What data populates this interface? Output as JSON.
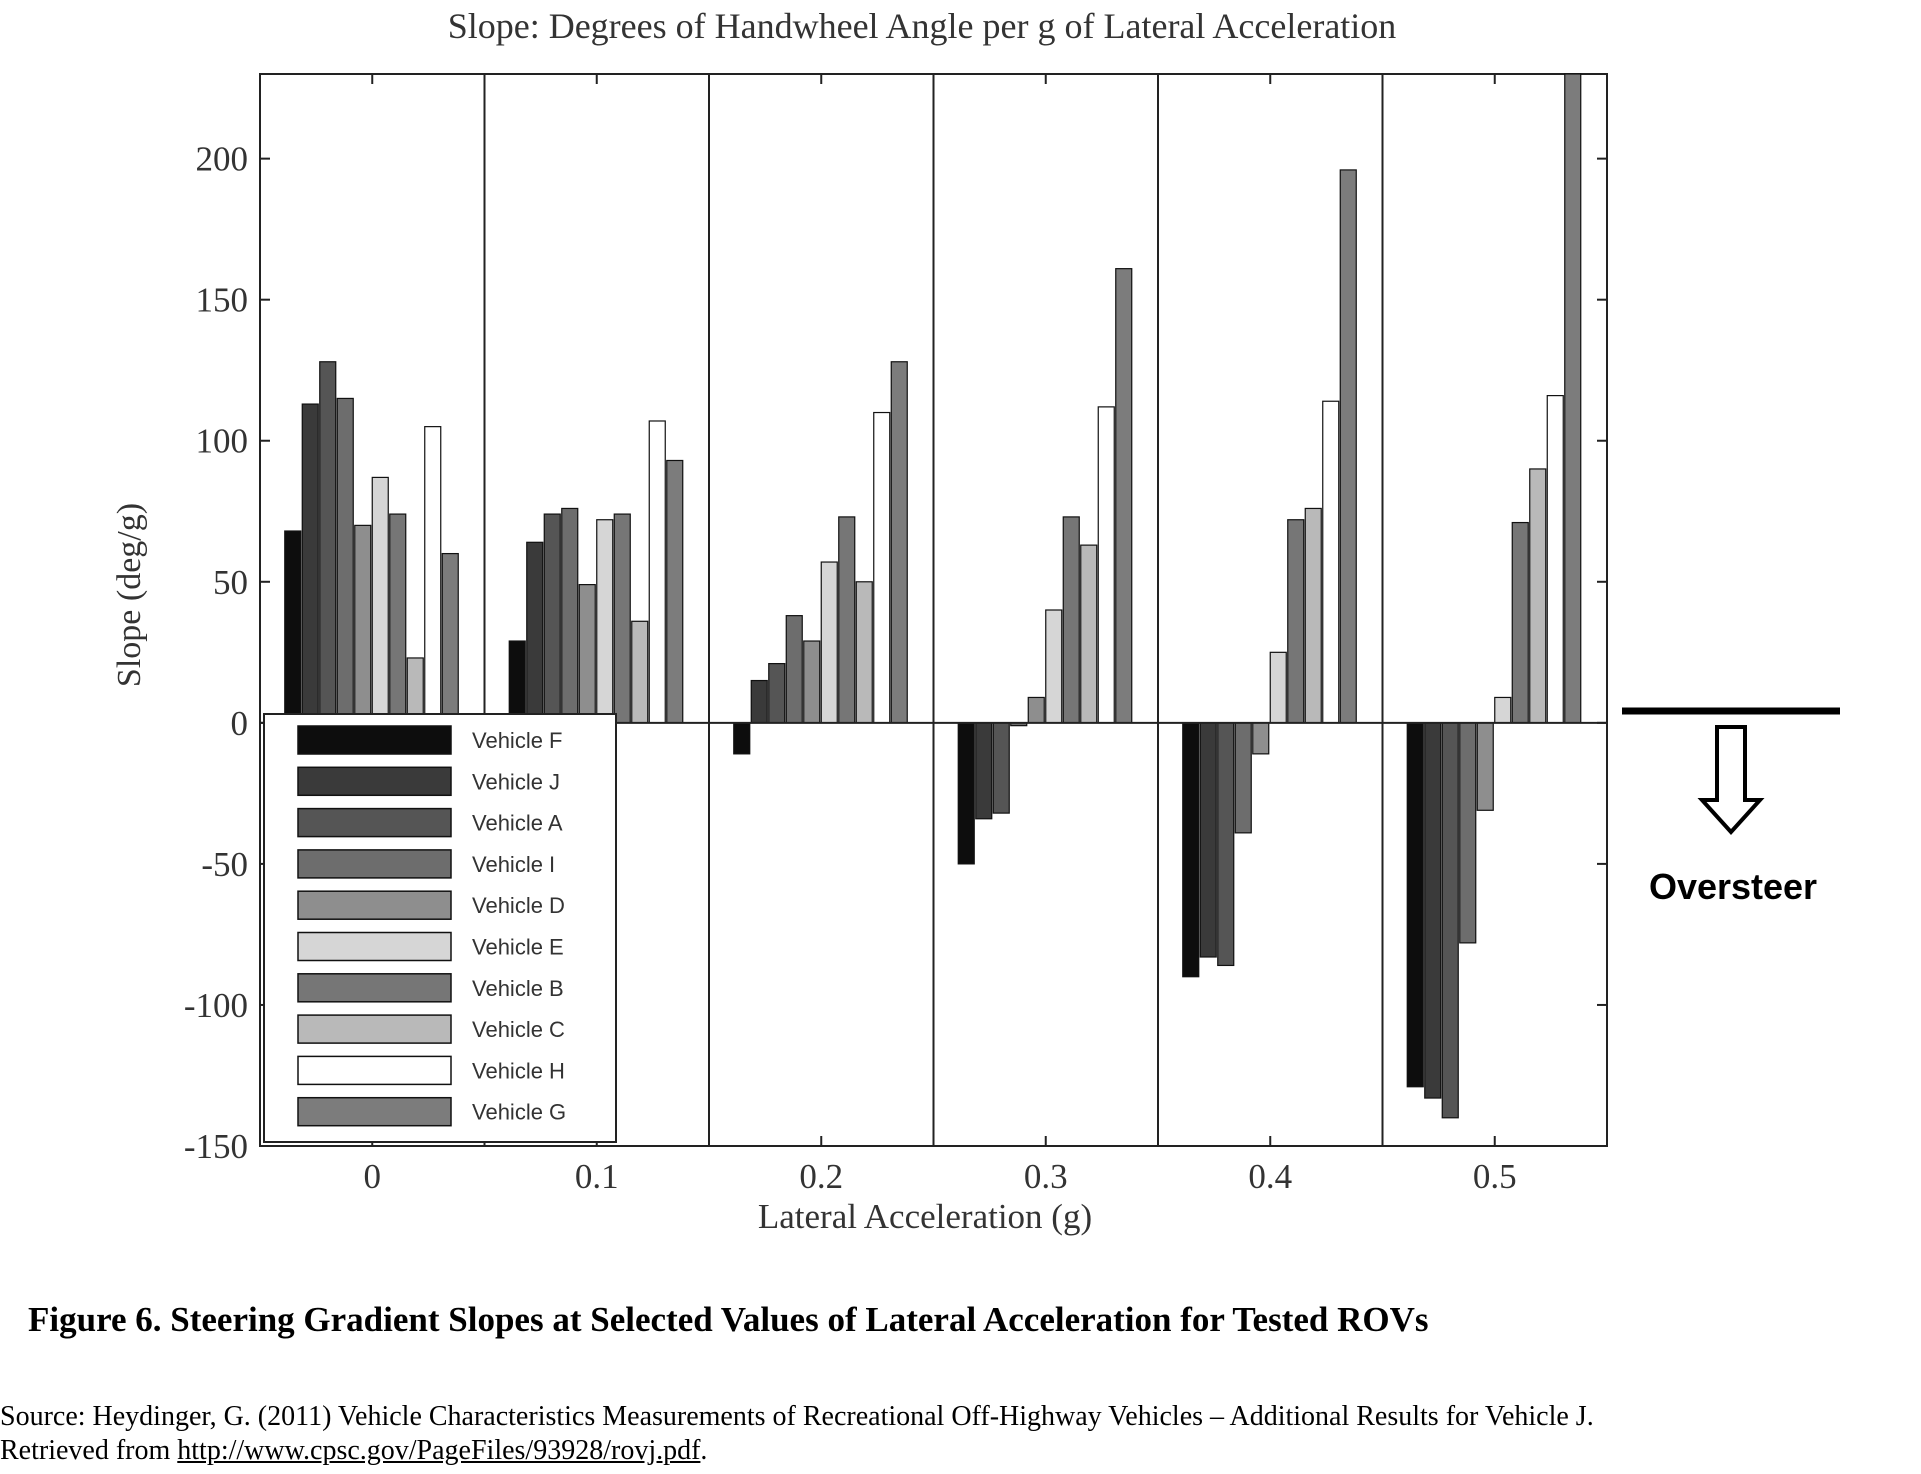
{
  "chart_data": {
    "type": "bar",
    "title": "Slope: Degrees of Handwheel Angle per g of Lateral Acceleration",
    "xlabel": "Lateral Acceleration (g)",
    "ylabel": "Slope (deg/g)",
    "ylim": [
      -150,
      230
    ],
    "yticks": [
      200,
      150,
      100,
      50,
      0,
      -50,
      -100,
      -150
    ],
    "yticklabels": [
      "200",
      "150",
      "100",
      "50",
      "0",
      "-50",
      "-100",
      "-150"
    ],
    "categories": [
      "0",
      "0.1",
      "0.2",
      "0.3",
      "0.4",
      "0.5"
    ],
    "grid": false,
    "legend_position": "bottom-left",
    "series": [
      {
        "name": "Vehicle F",
        "color": "#0d0d0d",
        "values": [
          68,
          29,
          -11,
          -50,
          -90,
          -129
        ]
      },
      {
        "name": "Vehicle J",
        "color": "#3a3a3a",
        "values": [
          113,
          64,
          15,
          -34,
          -83,
          -133
        ]
      },
      {
        "name": "Vehicle A",
        "color": "#555555",
        "values": [
          128,
          74,
          21,
          -32,
          -86,
          -140
        ]
      },
      {
        "name": "Vehicle I",
        "color": "#6d6d6d",
        "values": [
          115,
          76,
          38,
          -1,
          -39,
          -78
        ]
      },
      {
        "name": "Vehicle D",
        "color": "#8e8e8e",
        "values": [
          70,
          49,
          29,
          9,
          -11,
          -31
        ]
      },
      {
        "name": "Vehicle E",
        "color": "#d6d6d6",
        "values": [
          87,
          72,
          57,
          40,
          25,
          9
        ]
      },
      {
        "name": "Vehicle B",
        "color": "#767676",
        "values": [
          74,
          74,
          73,
          73,
          72,
          71
        ]
      },
      {
        "name": "Vehicle C",
        "color": "#b9b9b9",
        "values": [
          23,
          36,
          50,
          63,
          76,
          90
        ]
      },
      {
        "name": "Vehicle H",
        "color": "#ffffff",
        "values": [
          105,
          107,
          110,
          112,
          114,
          116
        ]
      },
      {
        "name": "Vehicle G",
        "color": "#7c7c7c",
        "values": [
          60,
          93,
          128,
          161,
          196,
          230
        ]
      }
    ],
    "annotation": "Oversteer"
  },
  "caption": "Figure 6. Steering Gradient Slopes at Selected Values of Lateral Acceleration for Tested ROVs",
  "source": {
    "line1": "Source:  Heydinger, G. (2011) Vehicle Characteristics Measurements of Recreational Off-Highway Vehicles – Additional Results for Vehicle J.",
    "line2_prefix": "Retrieved from ",
    "link": "http://www.cpsc.gov/PageFiles/93928/rovj.pdf",
    "line2_suffix": "."
  }
}
